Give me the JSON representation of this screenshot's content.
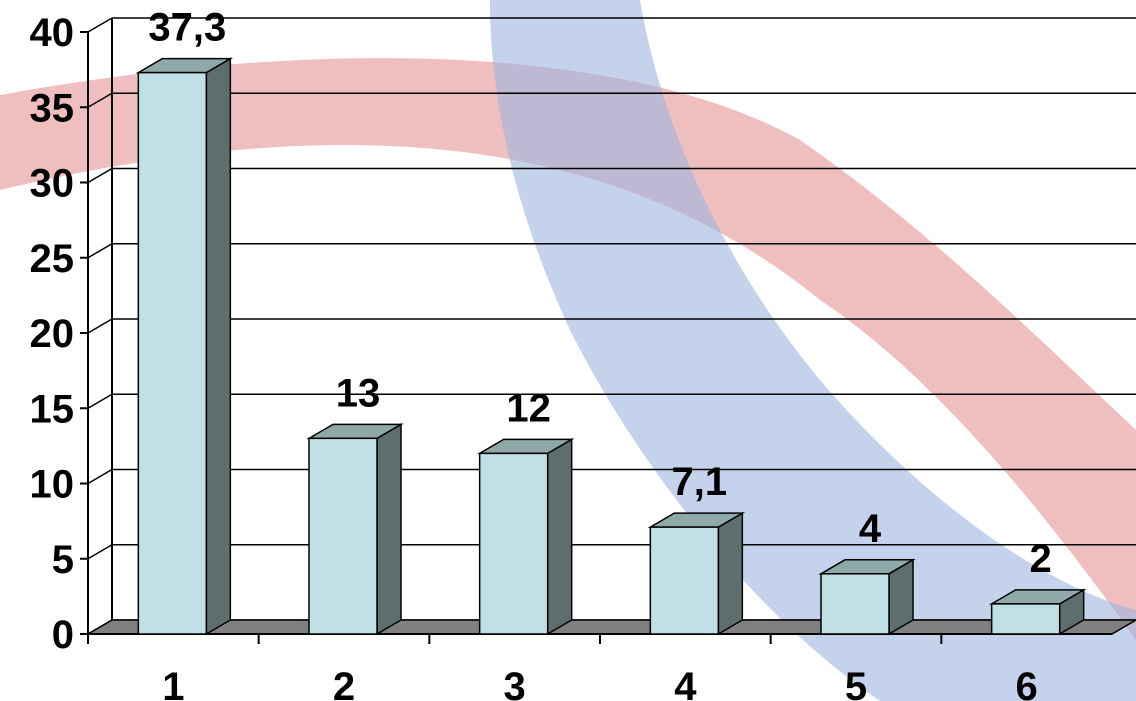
{
  "chart_data": {
    "type": "bar",
    "categories": [
      "1",
      "2",
      "3",
      "4",
      "5",
      "6"
    ],
    "values": [
      37.3,
      13,
      12,
      7.1,
      4,
      2
    ],
    "data_labels": [
      "37,3",
      "13",
      "12",
      "7,1",
      "4",
      "2"
    ],
    "title": "",
    "xlabel": "",
    "ylabel": "",
    "ylim": [
      0,
      40
    ],
    "yticks": [
      "0",
      "5",
      "10",
      "15",
      "20",
      "25",
      "30",
      "35",
      "40"
    ],
    "grid": true,
    "legend": "none",
    "style": "3d-column"
  },
  "colors": {
    "bar_front": "#bfe1e6",
    "bar_top": "#8fa8a8",
    "bar_side": "#5e6e6e",
    "floor": "#808080",
    "background_arc_red": "#e8a3a3",
    "background_arc_blue": "#9fb4e0"
  }
}
